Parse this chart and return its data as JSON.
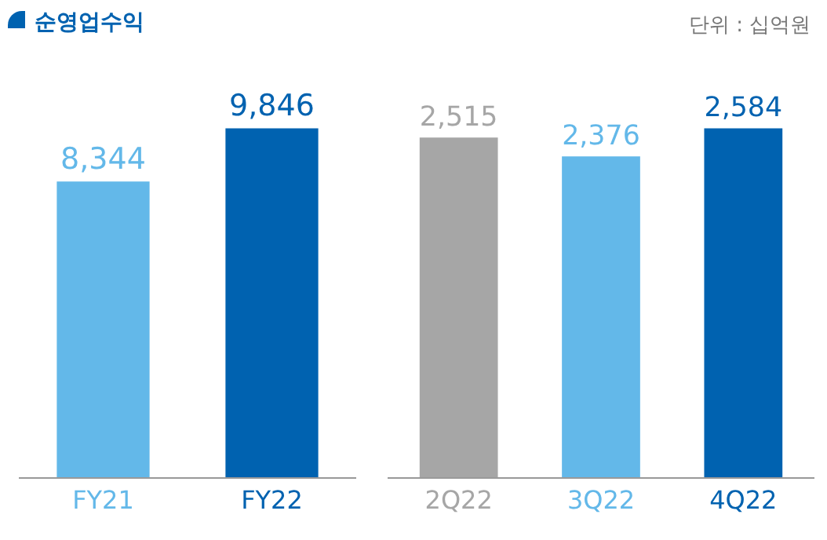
{
  "chart_data": [
    {
      "type": "bar",
      "title": "순영업수익",
      "categories": [
        "FY21",
        "FY22"
      ],
      "values": [
        8344,
        9846
      ],
      "colors": [
        "#63b8e9",
        "#0062b0"
      ],
      "value_labels": [
        "8,344",
        "9,846"
      ]
    },
    {
      "type": "bar",
      "annotations": [
        "단위 : 십억원"
      ],
      "categories": [
        "2Q22",
        "3Q22",
        "4Q22"
      ],
      "values": [
        2515,
        2376,
        2584
      ],
      "colors": [
        "#a6a6a6",
        "#63b8e9",
        "#0062b0"
      ],
      "value_labels": [
        "2,515",
        "2,376",
        "2,584"
      ]
    }
  ]
}
